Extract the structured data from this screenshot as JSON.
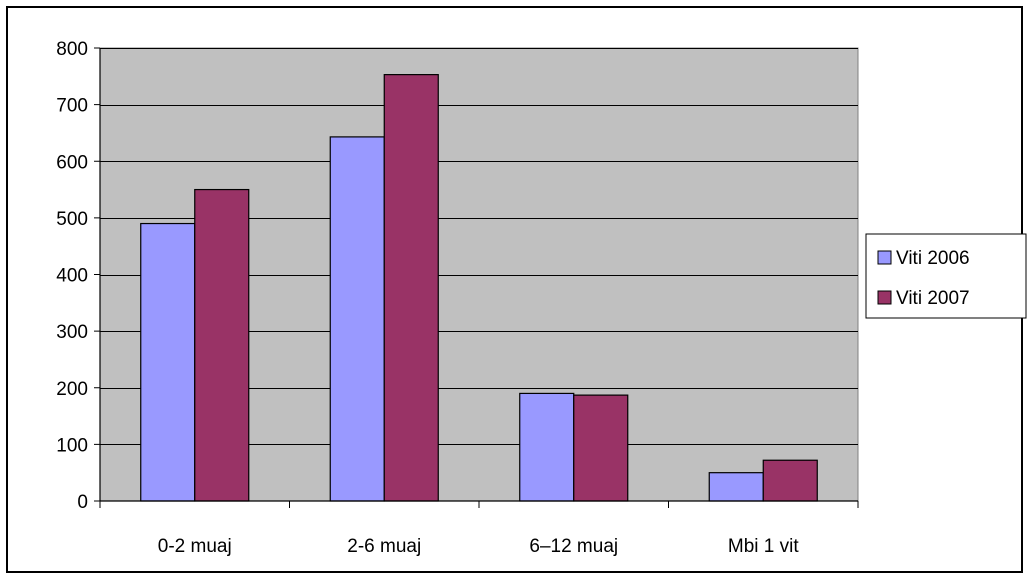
{
  "chart_data": {
    "type": "bar",
    "title": "",
    "xlabel": "",
    "ylabel": "",
    "categories": [
      "0-2 muaj",
      "2-6 muaj",
      "6–12 muaj",
      "Mbi 1 vit"
    ],
    "series": [
      {
        "name": "Viti 2006",
        "values": [
          490,
          643,
          190,
          50
        ],
        "color": "#9999ff"
      },
      {
        "name": "Viti 2007",
        "values": [
          550,
          753,
          187,
          72
        ],
        "color": "#993366"
      }
    ],
    "ylim": [
      0,
      800
    ],
    "yticks": [
      0,
      100,
      200,
      300,
      400,
      500,
      600,
      700,
      800
    ],
    "grid": true,
    "plot_background": "#c0c0c0",
    "legend_position": "right"
  }
}
